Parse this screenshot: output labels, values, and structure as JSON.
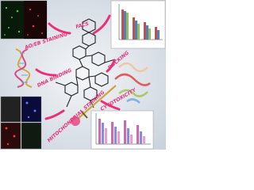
{
  "labels": {
    "ao_eb": "AO/EB STAINING",
    "facs": "FACS",
    "dna_binding": "DNA BINDING",
    "docking": "DOCKING",
    "cytotoxicity": "CYTOTOXICITY",
    "mito": "MITOCHONDRIAL STAINING"
  }
}
